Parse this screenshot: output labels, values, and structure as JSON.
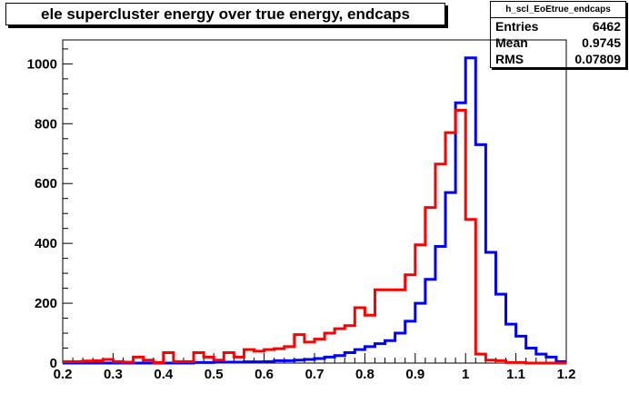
{
  "title": "ele supercluster energy over true energy, endcaps",
  "stats": {
    "name": "h_scl_EoEtrue_endcaps",
    "rows": [
      {
        "label": "Entries",
        "value": "6462"
      },
      {
        "label": "Mean",
        "value": "0.9745"
      },
      {
        "label": "RMS",
        "value": "0.07809"
      }
    ]
  },
  "chart_data": {
    "type": "line",
    "xlim": [
      0.2,
      1.2
    ],
    "ylim": [
      0,
      1080
    ],
    "xticks": [
      0.2,
      0.3,
      0.4,
      0.5,
      0.6,
      0.7,
      0.8,
      0.9,
      1,
      1.1,
      1.2
    ],
    "xtick_labels": [
      "0.2",
      "0.3",
      "0.4",
      "0.5",
      "0.6",
      "0.7",
      "0.8",
      "0.9",
      "1",
      "1.1",
      "1.2"
    ],
    "yticks": [
      0,
      200,
      400,
      600,
      800,
      1000
    ],
    "ytick_labels": [
      "0",
      "200",
      "400",
      "600",
      "800",
      "1000"
    ],
    "bin_width": 0.02,
    "grid": false,
    "series": [
      {
        "color": "#0000ff",
        "x": [
          0.2,
          0.22,
          0.24,
          0.26,
          0.28,
          0.3,
          0.32,
          0.34,
          0.36,
          0.38,
          0.4,
          0.42,
          0.44,
          0.46,
          0.48,
          0.5,
          0.52,
          0.54,
          0.56,
          0.58,
          0.6,
          0.62,
          0.64,
          0.66,
          0.68,
          0.7,
          0.72,
          0.74,
          0.76,
          0.78,
          0.8,
          0.82,
          0.84,
          0.86,
          0.88,
          0.9,
          0.92,
          0.94,
          0.96,
          0.98,
          1.0,
          1.02,
          1.04,
          1.06,
          1.08,
          1.1,
          1.12,
          1.14,
          1.16,
          1.18
        ],
        "values": [
          0,
          0,
          0,
          0,
          0,
          0,
          0,
          0,
          0,
          0,
          0,
          0,
          0,
          2,
          2,
          3,
          3,
          3,
          4,
          4,
          5,
          8,
          8,
          10,
          12,
          15,
          20,
          25,
          35,
          45,
          55,
          65,
          75,
          100,
          140,
          200,
          280,
          390,
          570,
          870,
          1020,
          730,
          370,
          230,
          130,
          90,
          50,
          30,
          20,
          5
        ]
      },
      {
        "color": "#ff0000",
        "x": [
          0.2,
          0.22,
          0.24,
          0.26,
          0.28,
          0.3,
          0.32,
          0.34,
          0.36,
          0.38,
          0.4,
          0.42,
          0.44,
          0.46,
          0.48,
          0.5,
          0.52,
          0.54,
          0.56,
          0.58,
          0.6,
          0.62,
          0.64,
          0.66,
          0.68,
          0.7,
          0.72,
          0.74,
          0.76,
          0.78,
          0.8,
          0.82,
          0.84,
          0.86,
          0.88,
          0.9,
          0.92,
          0.94,
          0.96,
          0.98,
          1.0,
          1.02,
          1.04,
          1.06,
          1.08,
          1.1,
          1.12,
          1.14,
          1.16,
          1.18
        ],
        "values": [
          5,
          5,
          7,
          8,
          12,
          5,
          3,
          20,
          10,
          2,
          35,
          5,
          5,
          35,
          20,
          10,
          35,
          20,
          45,
          40,
          45,
          48,
          55,
          95,
          70,
          80,
          100,
          115,
          125,
          185,
          160,
          245,
          245,
          245,
          295,
          395,
          520,
          665,
          770,
          845,
          480,
          30,
          10,
          8,
          2,
          2,
          0,
          0,
          0,
          0
        ]
      }
    ]
  }
}
